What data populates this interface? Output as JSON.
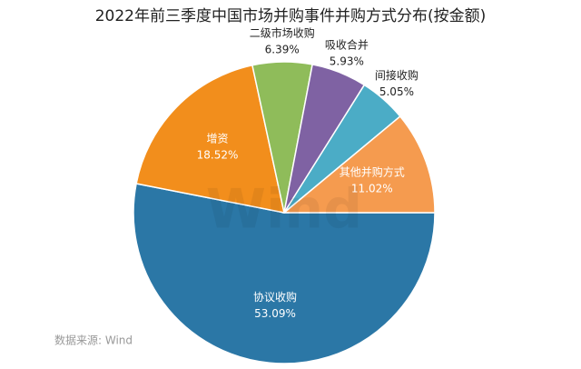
{
  "chart_data": {
    "type": "pie",
    "title": "2022年前三季度中国市场并购事件并购方式分布(按金额)",
    "categories": [
      "协议收购",
      "增资",
      "二级市场收购",
      "吸收合并",
      "间接收购",
      "其他并购方式"
    ],
    "values": [
      53.09,
      18.52,
      6.39,
      5.93,
      5.05,
      11.02
    ],
    "value_labels": [
      "53.09%",
      "18.52%",
      "6.39%",
      "5.93%",
      "5.05%",
      "11.02%"
    ],
    "colors": [
      "#2b77a6",
      "#f28e1c",
      "#8fbc5a",
      "#7f62a3",
      "#4bacc6",
      "#f59b4f"
    ],
    "source": "数据来源: Wind",
    "watermark": "Wind"
  }
}
